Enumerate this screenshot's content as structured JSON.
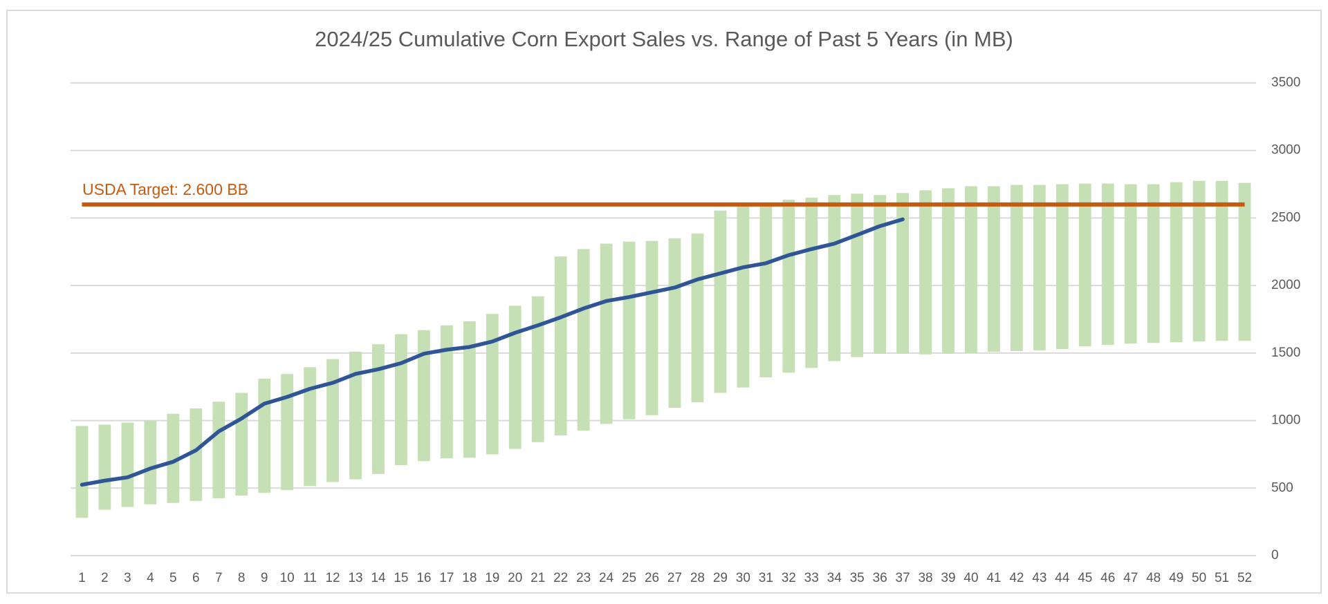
{
  "chart_data": {
    "type": "bar",
    "title": "2024/25 Cumulative Corn Export Sales vs. Range of Past 5 Years (in MB)",
    "categories": [
      1,
      2,
      3,
      4,
      5,
      6,
      7,
      8,
      9,
      10,
      11,
      12,
      13,
      14,
      15,
      16,
      17,
      18,
      19,
      20,
      21,
      22,
      23,
      24,
      25,
      26,
      27,
      28,
      29,
      30,
      31,
      32,
      33,
      34,
      35,
      36,
      37,
      38,
      39,
      40,
      41,
      42,
      43,
      44,
      45,
      46,
      47,
      48,
      49,
      50,
      51,
      52
    ],
    "range": {
      "color": "#c5e0b4",
      "low": [
        280,
        340,
        360,
        380,
        390,
        405,
        425,
        445,
        465,
        485,
        515,
        545,
        565,
        605,
        670,
        700,
        720,
        725,
        750,
        790,
        840,
        890,
        925,
        975,
        1010,
        1040,
        1095,
        1135,
        1205,
        1245,
        1320,
        1355,
        1390,
        1440,
        1470,
        1495,
        1495,
        1490,
        1495,
        1500,
        1510,
        1515,
        1520,
        1530,
        1550,
        1560,
        1570,
        1575,
        1580,
        1585,
        1590,
        1590
      ],
      "high": [
        960,
        970,
        985,
        1000,
        1050,
        1090,
        1140,
        1205,
        1310,
        1345,
        1395,
        1455,
        1510,
        1565,
        1640,
        1670,
        1705,
        1735,
        1790,
        1850,
        1920,
        2215,
        2270,
        2310,
        2325,
        2330,
        2350,
        2385,
        2555,
        2600,
        2615,
        2635,
        2650,
        2670,
        2680,
        2670,
        2685,
        2705,
        2720,
        2735,
        2735,
        2745,
        2745,
        2750,
        2755,
        2755,
        2750,
        2750,
        2765,
        2775,
        2775,
        2760
      ]
    },
    "line": {
      "color": "#2f5597",
      "values": [
        525,
        555,
        580,
        645,
        695,
        780,
        920,
        1015,
        1125,
        1175,
        1235,
        1280,
        1345,
        1380,
        1425,
        1495,
        1525,
        1545,
        1585,
        1650,
        1705,
        1765,
        1830,
        1885,
        1915,
        1950,
        1985,
        2045,
        2090,
        2135,
        2165,
        2225,
        2270,
        2310,
        2375,
        2440,
        2490
      ]
    },
    "target": {
      "value": 2600,
      "label": "USDA Target: 2.600 BB",
      "color": "#c55a11"
    },
    "ylim": [
      0,
      3500
    ],
    "yticks": [
      0,
      500,
      1000,
      1500,
      2000,
      2500,
      3000,
      3500
    ],
    "grid": true,
    "y_axis_side": "right"
  }
}
